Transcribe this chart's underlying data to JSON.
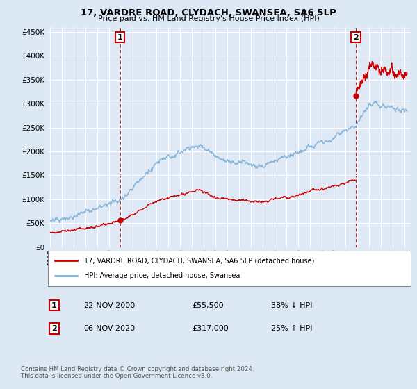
{
  "title": "17, VARDRE ROAD, CLYDACH, SWANSEA, SA6 5LP",
  "subtitle": "Price paid vs. HM Land Registry's House Price Index (HPI)",
  "bg_color": "#dce9f5",
  "plot_bg_color": "#dfe8f5",
  "legend_label_red": "17, VARDRE ROAD, CLYDACH, SWANSEA, SA6 5LP (detached house)",
  "legend_label_blue": "HPI: Average price, detached house, Swansea",
  "transaction1_date": "22-NOV-2000",
  "transaction1_price": "£55,500",
  "transaction1_hpi": "38% ↓ HPI",
  "transaction1_x": 2000.9,
  "transaction1_y": 55500,
  "transaction2_date": "06-NOV-2020",
  "transaction2_price": "£317,000",
  "transaction2_hpi": "25% ↑ HPI",
  "transaction2_x": 2020.85,
  "transaction2_y": 317000,
  "footer": "Contains HM Land Registry data © Crown copyright and database right 2024.\nThis data is licensed under the Open Government Licence v3.0.",
  "ylim": [
    0,
    460000
  ],
  "xlim_start": 1994.8,
  "xlim_end": 2025.5,
  "red_color": "#cc0000",
  "blue_color": "#7fb2d9",
  "dashed_color": "#cc0000"
}
